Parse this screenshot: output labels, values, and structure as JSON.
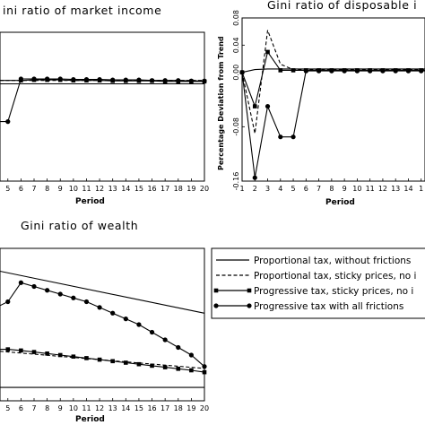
{
  "chart_data": [
    {
      "type": "line",
      "title": "ini ratio of market income",
      "xlabel": "Period",
      "ylabel": "",
      "x_ticks": [
        "5",
        "6",
        "7",
        "8",
        "9",
        "10",
        "11",
        "12",
        "13",
        "14",
        "15",
        "16",
        "17",
        "18",
        "19",
        "20"
      ],
      "xlim": [
        4.4,
        20
      ],
      "ylim": [
        -0.2,
        0.1
      ],
      "series": [
        {
          "key": "s1",
          "style": "solid",
          "x": [
            4.4,
            20
          ],
          "y": [
            -0.004,
            -0.004
          ]
        },
        {
          "key": "s2",
          "style": "dashed",
          "x": [
            4.4,
            20
          ],
          "y": [
            0.003,
            0.003
          ]
        },
        {
          "key": "s3",
          "style": "square",
          "x": [
            4.4,
            6,
            7,
            8,
            9,
            10,
            11,
            12,
            13,
            14,
            15,
            16,
            17,
            18,
            19,
            20
          ],
          "y": [
            0.003,
            0.003,
            0.004,
            0.004,
            0.004,
            0.003,
            0.003,
            0.003,
            0.002,
            0.002,
            0.002,
            0.002,
            0.001,
            0.001,
            0.001,
            0.001
          ]
        },
        {
          "key": "s4",
          "style": "circle",
          "x": [
            4.4,
            5,
            6,
            7,
            8,
            9,
            10,
            11,
            12,
            13,
            14,
            15,
            16,
            17,
            18,
            19,
            20
          ],
          "y": [
            -0.08,
            -0.08,
            0.006,
            0.006,
            0.006,
            0.006,
            0.005,
            0.005,
            0.005,
            0.004,
            0.004,
            0.004,
            0.003,
            0.003,
            0.003,
            0.002,
            0.002
          ]
        }
      ]
    },
    {
      "type": "line",
      "title": "Gini ratio of disposable i",
      "xlabel": "Period",
      "ylabel": "Percentage Deviation from Trend",
      "x_ticks": [
        "1",
        "2",
        "3",
        "4",
        "5",
        "6",
        "7",
        "8",
        "9",
        "10",
        "11",
        "12",
        "13",
        "14",
        "1"
      ],
      "y_ticks": [
        "0.08",
        "0.04",
        "0.00",
        "-0.08",
        "-0.16"
      ],
      "xlim": [
        1,
        15.3
      ],
      "ylim": [
        -0.16,
        0.08
      ],
      "series": [
        {
          "key": "s1",
          "style": "solid",
          "x": [
            1,
            2,
            3,
            4,
            5,
            6,
            8,
            10,
            12,
            14,
            15.3
          ],
          "y": [
            0.0,
            0.004,
            0.005,
            0.005,
            0.005,
            0.005,
            0.005,
            0.005,
            0.005,
            0.005,
            0.005
          ]
        },
        {
          "key": "s2",
          "style": "dashed",
          "x": [
            1,
            2,
            3,
            4,
            5,
            6,
            8,
            10,
            12,
            14,
            15.3
          ],
          "y": [
            0.0,
            -0.09,
            0.062,
            0.012,
            0.004,
            0.004,
            0.004,
            0.004,
            0.004,
            0.004,
            0.004
          ]
        },
        {
          "key": "s3",
          "style": "square",
          "x": [
            1,
            2,
            3,
            4,
            5,
            6,
            7,
            8,
            9,
            10,
            11,
            12,
            13,
            14,
            15,
            15.3
          ],
          "y": [
            0.0,
            -0.05,
            0.03,
            0.003,
            0.003,
            0.003,
            0.003,
            0.003,
            0.003,
            0.003,
            0.003,
            0.003,
            0.003,
            0.003,
            0.003,
            0.003
          ]
        },
        {
          "key": "s4",
          "style": "circle",
          "x": [
            1,
            2,
            3,
            4,
            5,
            6,
            7,
            8,
            9,
            10,
            11,
            12,
            13,
            14,
            15,
            15.3
          ],
          "y": [
            0.0,
            -0.155,
            -0.05,
            -0.095,
            -0.095,
            0.002,
            0.002,
            0.002,
            0.002,
            0.002,
            0.002,
            0.002,
            0.002,
            0.002,
            0.002,
            0.002
          ]
        }
      ]
    },
    {
      "type": "line",
      "title": "Gini ratio of wealth",
      "xlabel": "Period",
      "ylabel": "",
      "x_ticks": [
        "5",
        "6",
        "7",
        "8",
        "9",
        "10",
        "11",
        "12",
        "13",
        "14",
        "15",
        "16",
        "17",
        "18",
        "19",
        "20"
      ],
      "xlim": [
        4.4,
        20
      ],
      "ylim": [
        -0.2,
        0.2
      ],
      "series": [
        {
          "key": "s1",
          "style": "solid",
          "x": [
            4.4,
            20
          ],
          "y": [
            0.14,
            0.03
          ]
        },
        {
          "key": "s2",
          "style": "dashed",
          "x": [
            4.4,
            20
          ],
          "y": [
            -0.07,
            -0.115
          ]
        },
        {
          "key": "s3",
          "style": "square",
          "x": [
            4.4,
            5,
            6,
            7,
            8,
            9,
            10,
            11,
            12,
            13,
            14,
            15,
            16,
            17,
            18,
            19,
            20
          ],
          "y": [
            -0.065,
            -0.065,
            -0.068,
            -0.072,
            -0.076,
            -0.08,
            -0.084,
            -0.088,
            -0.092,
            -0.096,
            -0.1,
            -0.104,
            -0.108,
            -0.112,
            -0.116,
            -0.12,
            -0.125
          ]
        },
        {
          "key": "s4",
          "style": "circle",
          "x": [
            4.4,
            5,
            6,
            7,
            8,
            9,
            10,
            11,
            12,
            13,
            14,
            15,
            16,
            17,
            18,
            19,
            20
          ],
          "y": [
            0.05,
            0.06,
            0.11,
            0.1,
            0.09,
            0.08,
            0.07,
            0.06,
            0.045,
            0.03,
            0.015,
            0.0,
            -0.02,
            -0.04,
            -0.06,
            -0.08,
            -0.11
          ]
        },
        {
          "key": "s5",
          "style": "solid",
          "x": [
            4.4,
            20
          ],
          "y": [
            -0.165,
            -0.165
          ]
        }
      ]
    }
  ],
  "legend": [
    {
      "key": "s1",
      "style": "solid",
      "label": "Proportional tax, without frictions"
    },
    {
      "key": "s2",
      "style": "dashed",
      "label": "Proportional tax, sticky prices, no i"
    },
    {
      "key": "s3",
      "style": "square",
      "label": "Progressive tax, sticky prices, no i"
    },
    {
      "key": "s4",
      "style": "circle",
      "label": "Progressive tax with all frictions"
    }
  ]
}
